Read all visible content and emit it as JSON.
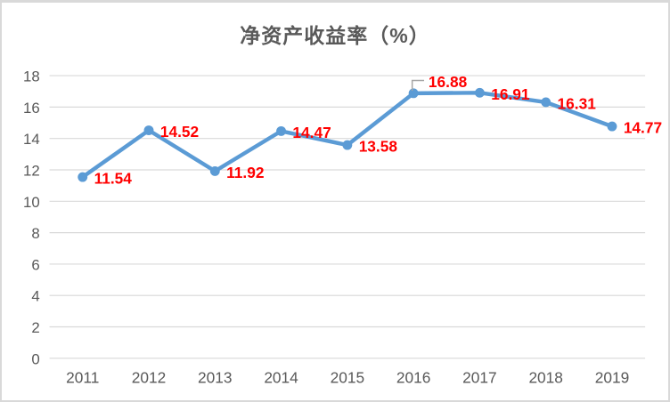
{
  "chart_data": {
    "type": "line",
    "title": "净资产收益率（%）",
    "categories": [
      "2011",
      "2012",
      "2013",
      "2014",
      "2015",
      "2016",
      "2017",
      "2018",
      "2019"
    ],
    "values": [
      11.54,
      14.52,
      11.92,
      14.47,
      13.58,
      16.88,
      16.91,
      16.31,
      14.77
    ],
    "point_labels": [
      "11.54",
      "14.52",
      "11.92",
      "14.47",
      "13.58",
      "16.88",
      "16.91",
      "16.31",
      "14.77"
    ],
    "label_placement": [
      "right",
      "right",
      "right",
      "right",
      "right",
      "above-leader",
      "right",
      "right",
      "right"
    ],
    "yticks": [
      0,
      2,
      4,
      6,
      8,
      10,
      12,
      14,
      16,
      18
    ],
    "ylim": [
      0,
      18
    ],
    "xlabel": "",
    "ylabel": "",
    "grid": true,
    "legend": "none",
    "colors": {
      "line": "#5B9BD5",
      "marker": "#5B9BD5",
      "data_label": "#FF0000",
      "axis_text": "#595959",
      "title_text": "#595959",
      "gridline": "#D9D9D9",
      "leader_line": "#A6A6A6",
      "chart_border": "#D9D9D9",
      "background": "#FFFFFF"
    }
  }
}
